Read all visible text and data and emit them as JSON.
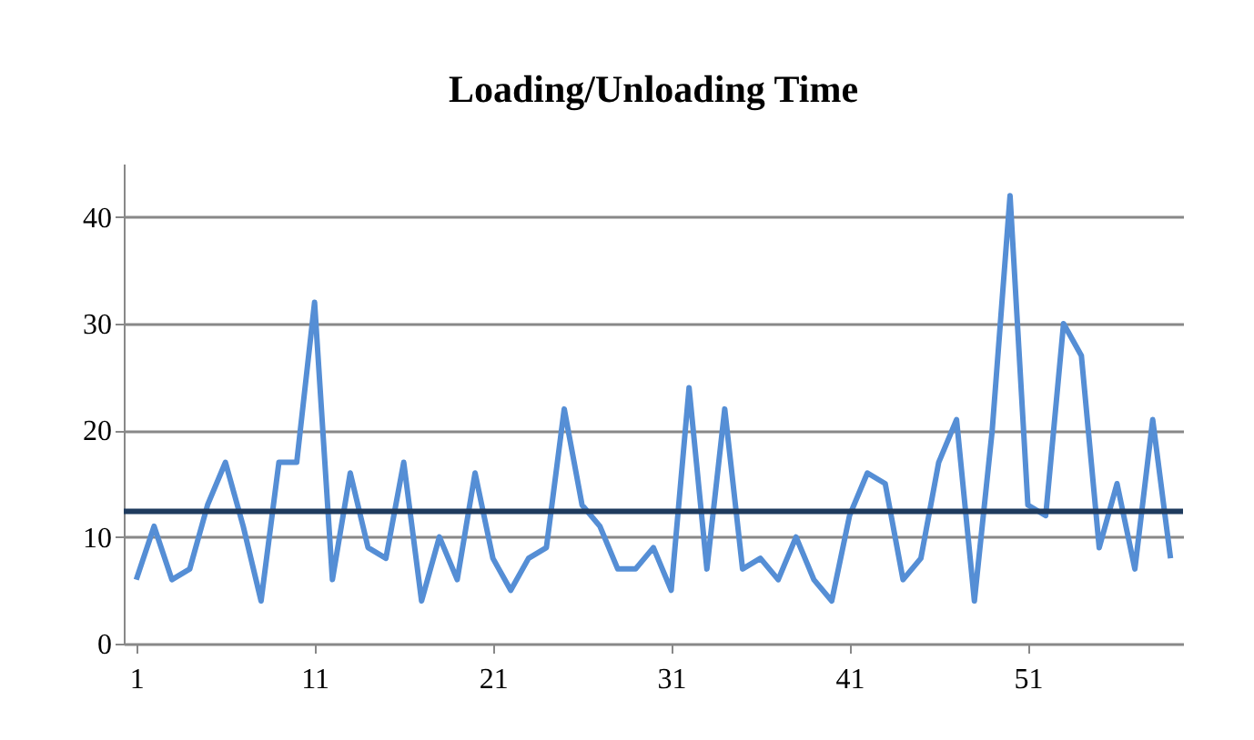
{
  "chart_data": {
    "type": "line",
    "title": "Loading/Unloading Time",
    "x": [
      1,
      2,
      3,
      4,
      5,
      6,
      7,
      8,
      9,
      10,
      11,
      12,
      13,
      14,
      15,
      16,
      17,
      18,
      19,
      20,
      21,
      22,
      23,
      24,
      25,
      26,
      27,
      28,
      29,
      30,
      31,
      32,
      33,
      34,
      35,
      36,
      37,
      38,
      39,
      40,
      41,
      42,
      43,
      44,
      45,
      46,
      47,
      48,
      49,
      50,
      51,
      52,
      53,
      54,
      55,
      56,
      57,
      58,
      59
    ],
    "series": [
      {
        "color": "#558ed5",
        "values": [
          6,
          11,
          6,
          7,
          13,
          17,
          11,
          4,
          17,
          17,
          32,
          6,
          16,
          9,
          8,
          17,
          4,
          10,
          6,
          16,
          8,
          5,
          8,
          9,
          22,
          13,
          11,
          7,
          7,
          9,
          5,
          24,
          7,
          22,
          7,
          8,
          6,
          10,
          6,
          4,
          12,
          16,
          15,
          6,
          8,
          17,
          21,
          4,
          20,
          42,
          13,
          12,
          30,
          27,
          9,
          15,
          7,
          21,
          8
        ]
      }
    ],
    "xlim": [
      0.3,
      59.7
    ],
    "xticks": [
      1,
      11,
      21,
      31,
      41,
      51
    ],
    "ylim": [
      0,
      45
    ],
    "yticks": [
      0,
      10,
      20,
      30,
      40
    ],
    "grid": "y",
    "marker": "none",
    "line_style": "solid",
    "ref_lines": [
      {
        "axis": "y",
        "value": 12.4,
        "color": "#1f3b5e"
      }
    ]
  }
}
